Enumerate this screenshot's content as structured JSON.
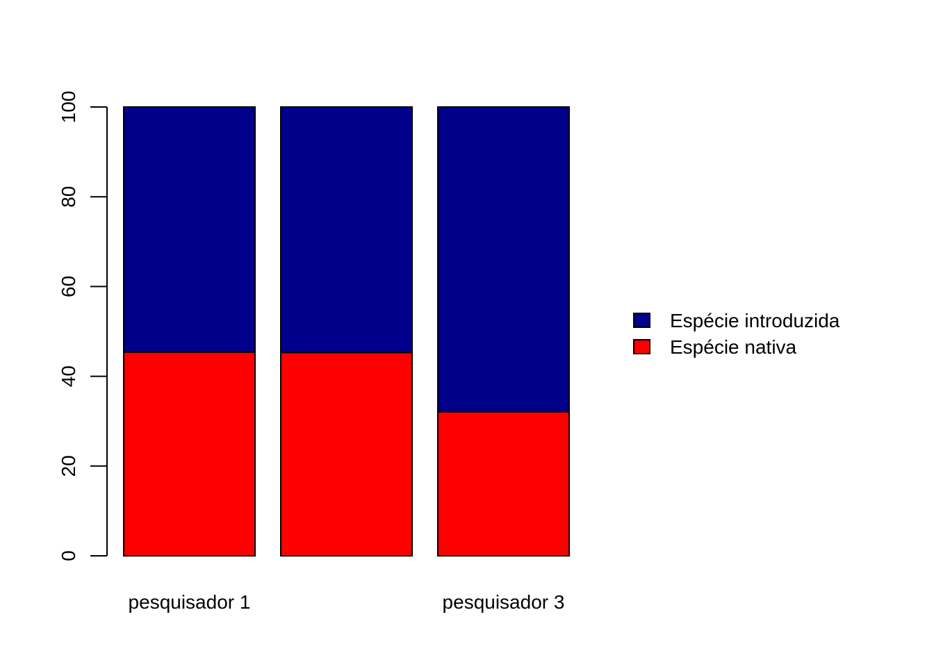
{
  "chart_data": {
    "type": "bar",
    "stacked": true,
    "categories": [
      "pesquisador 1",
      "",
      "pesquisador 3"
    ],
    "series": [
      {
        "name": "Espécie nativa",
        "values": [
          45.4,
          45.3,
          32.1
        ],
        "color": "#FF0000"
      },
      {
        "name": "Espécie introduzida",
        "values": [
          54.6,
          54.7,
          67.9
        ],
        "color": "#00008B"
      }
    ],
    "yticks": [
      "0",
      "20",
      "40",
      "60",
      "80",
      "100"
    ],
    "ylim": [
      0,
      100
    ],
    "grid": false,
    "legend": {
      "position": "right",
      "entries": [
        "Espécie introduzida",
        "Espécie nativa"
      ]
    }
  }
}
